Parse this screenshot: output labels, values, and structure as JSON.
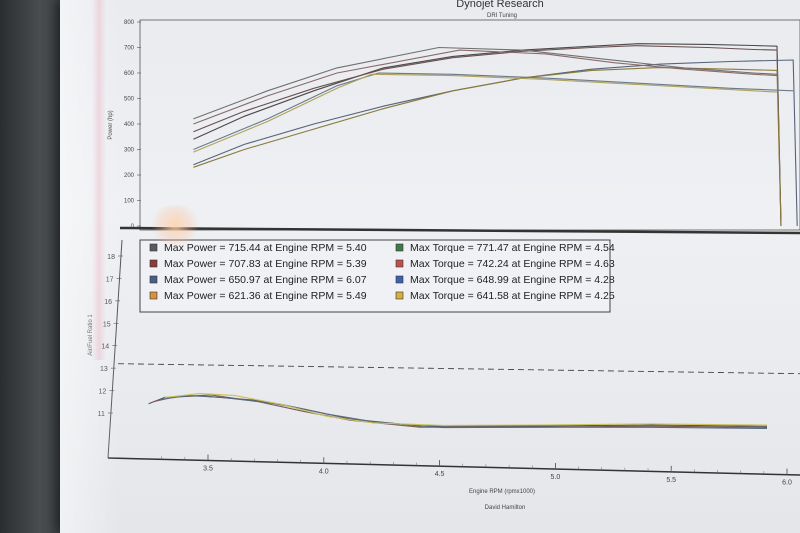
{
  "chart_data": [
    {
      "type": "line",
      "title": "Dynojet Research",
      "subtitle": "DRI Tuning",
      "ylabel": "Power (hp)",
      "ylim": [
        0,
        800
      ],
      "yticks": [
        0,
        100,
        200,
        300,
        400,
        500,
        600,
        700,
        800
      ],
      "grid": false,
      "legend": "none",
      "series": [
        {
          "color": "#4a4a4a",
          "x": [
            3.48,
            3.7,
            4.0,
            4.3,
            4.6,
            4.9,
            5.2,
            5.4,
            5.7,
            5.9,
            6.0
          ],
          "y": [
            340,
            430,
            530,
            620,
            665,
            690,
            705,
            715,
            712,
            708,
            705
          ]
        },
        {
          "color": "#6b5050",
          "x": [
            3.48,
            3.7,
            4.0,
            4.3,
            4.6,
            4.9,
            5.2,
            5.39,
            5.7,
            5.9,
            6.0
          ],
          "y": [
            370,
            450,
            540,
            615,
            660,
            685,
            700,
            707,
            700,
            692,
            690
          ]
        },
        {
          "color": "#56637a",
          "x": [
            3.48,
            3.7,
            4.0,
            4.3,
            4.6,
            4.9,
            5.2,
            5.5,
            5.8,
            6.07
          ],
          "y": [
            240,
            320,
            400,
            470,
            530,
            580,
            615,
            635,
            645,
            651
          ]
        },
        {
          "color": "#8a7a3a",
          "x": [
            3.48,
            3.7,
            4.0,
            4.3,
            4.6,
            4.9,
            5.2,
            5.49,
            5.8,
            6.0
          ],
          "y": [
            230,
            300,
            380,
            460,
            530,
            580,
            610,
            621,
            615,
            610
          ]
        },
        {
          "color": "#707070",
          "x": [
            3.48,
            3.8,
            4.1,
            4.54,
            4.9,
            5.3,
            5.6,
            5.9,
            6.0
          ],
          "y": [
            420,
            530,
            620,
            700,
            690,
            650,
            620,
            600,
            595
          ]
        },
        {
          "color": "#8a6a6a",
          "x": [
            3.48,
            3.8,
            4.1,
            4.63,
            5.0,
            5.3,
            5.6,
            5.9,
            6.0
          ],
          "y": [
            400,
            510,
            600,
            690,
            675,
            640,
            615,
            595,
            590
          ]
        },
        {
          "color": "#6a7a8a",
          "x": [
            3.48,
            3.8,
            4.1,
            4.28,
            4.6,
            5.0,
            5.4,
            5.8,
            6.07
          ],
          "y": [
            300,
            420,
            550,
            600,
            595,
            580,
            560,
            540,
            530
          ]
        },
        {
          "color": "#b0a35a",
          "x": [
            3.48,
            3.8,
            4.1,
            4.25,
            4.6,
            5.0,
            5.4,
            5.8,
            6.0
          ],
          "y": [
            290,
            410,
            540,
            595,
            590,
            575,
            555,
            535,
            525
          ]
        }
      ],
      "legend_entries": [
        {
          "color": "#5a5a5a",
          "label": "Max Power = 715.44 at Engine RPM = 5.40"
        },
        {
          "color": "#8c3a3a",
          "label": "Max Power = 707.83 at Engine RPM = 5.39"
        },
        {
          "color": "#4a5e8a",
          "label": "Max Power = 650.97 at Engine RPM = 6.07"
        },
        {
          "color": "#d9903f",
          "label": "Max Power = 621.36 at Engine RPM = 5.49"
        },
        {
          "color": "#3f7a4a",
          "label": "Max Torque = 771.47 at Engine RPM = 4.54"
        },
        {
          "color": "#c05050",
          "label": "Max Torque = 742.24 at Engine RPM = 4.63"
        },
        {
          "color": "#3f5fb0",
          "label": "Max Torque = 648.99 at Engine RPM = 4.28"
        },
        {
          "color": "#d6b040",
          "label": "Max Torque = 641.58 at Engine RPM = 4.25"
        }
      ]
    },
    {
      "type": "line",
      "xlabel": "Engine RPM (rpmx1000)",
      "ylabel": "Air/Fuel Ratio 1",
      "xlim": [
        3.3,
        6.0
      ],
      "xticks": [
        "3.5",
        "4.0",
        "4.5",
        "5.0",
        "5.5",
        "6.0"
      ],
      "ylim": [
        10,
        18
      ],
      "yticks": [
        11,
        12,
        13,
        14,
        15,
        16,
        17,
        18
      ],
      "reference_line": 13.2,
      "grid": false,
      "series": [
        {
          "color": "#555555",
          "x": [
            3.33,
            3.4,
            3.55,
            3.8,
            4.0,
            4.2,
            4.5,
            5.0,
            5.5,
            6.0
          ],
          "y": [
            11.4,
            11.7,
            11.8,
            11.65,
            11.3,
            10.9,
            10.65,
            10.75,
            10.9,
            10.95
          ]
        },
        {
          "color": "#7a5a5a",
          "x": [
            3.35,
            3.45,
            3.6,
            3.8,
            4.0,
            4.2,
            4.5,
            5.0,
            5.5,
            6.0
          ],
          "y": [
            11.5,
            11.75,
            11.85,
            11.6,
            11.2,
            10.85,
            10.6,
            10.7,
            10.85,
            10.9
          ]
        },
        {
          "color": "#5a6a80",
          "x": [
            3.38,
            3.5,
            3.65,
            3.9,
            4.1,
            4.3,
            4.6,
            5.0,
            5.5,
            6.0
          ],
          "y": [
            11.6,
            11.8,
            11.75,
            11.5,
            11.1,
            10.8,
            10.6,
            10.7,
            10.8,
            10.85
          ]
        },
        {
          "color": "#c8c25a",
          "x": [
            3.4,
            3.55,
            3.7,
            3.9,
            4.1,
            4.3,
            4.6,
            5.0,
            5.5,
            6.0
          ],
          "y": [
            11.7,
            11.9,
            11.85,
            11.5,
            11.0,
            10.75,
            10.7,
            10.8,
            10.95,
            11.0
          ]
        }
      ]
    }
  ],
  "footer": {
    "operator": "David Hamilton"
  }
}
